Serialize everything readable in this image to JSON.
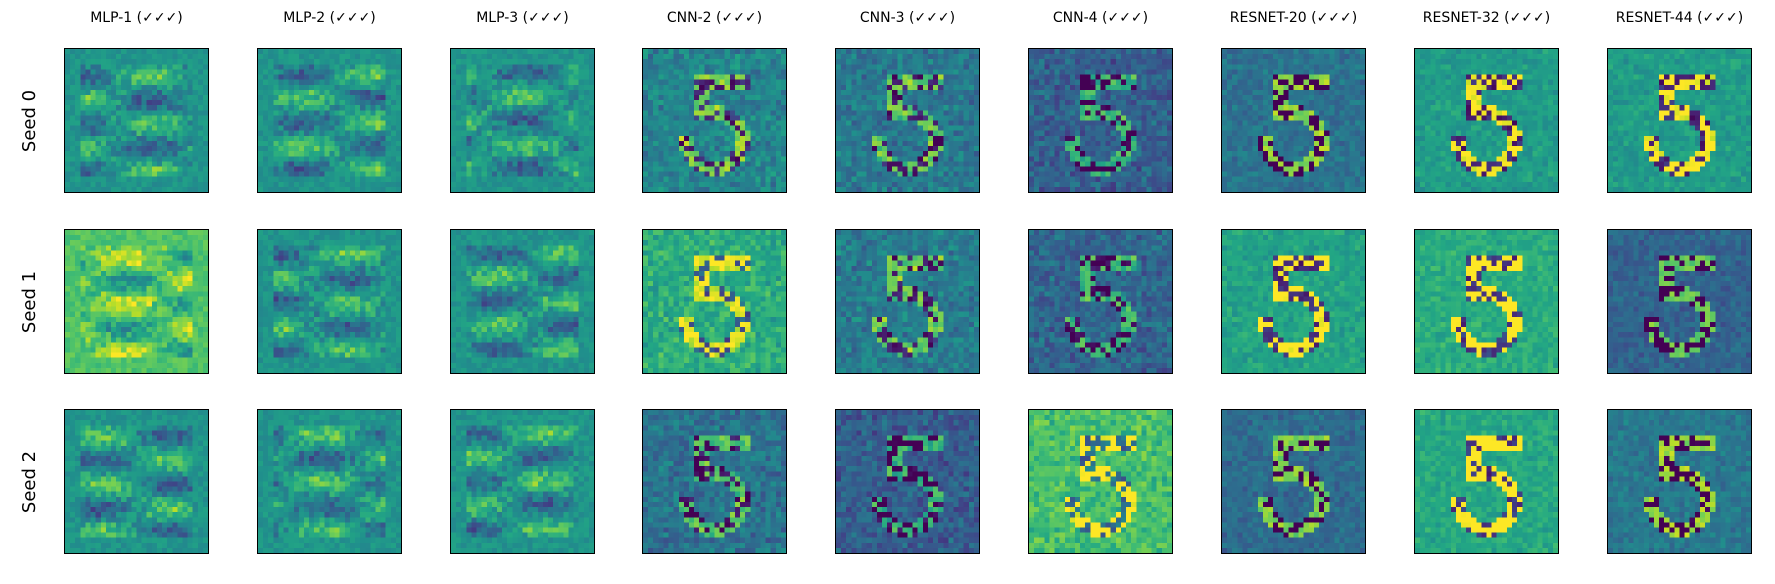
{
  "chart_data": {
    "type": "heatmap",
    "colormap": "viridis",
    "grid": false,
    "columns": [
      "MLP-1 (✓✓✓)",
      "MLP-2 (✓✓✓)",
      "MLP-3 (✓✓✓)",
      "CNN-2 (✓✓✓)",
      "CNN-3 (✓✓✓)",
      "CNN-4 (✓✓✓)",
      "RESNET-20 (✓✓✓)",
      "RESNET-32 (✓✓✓)",
      "RESNET-44 (✓✓✓)"
    ],
    "rows": [
      "Seed 0",
      "Seed 1",
      "Seed 2"
    ],
    "image_resolution": [
      28,
      28
    ],
    "axis_ticks": false
  }
}
